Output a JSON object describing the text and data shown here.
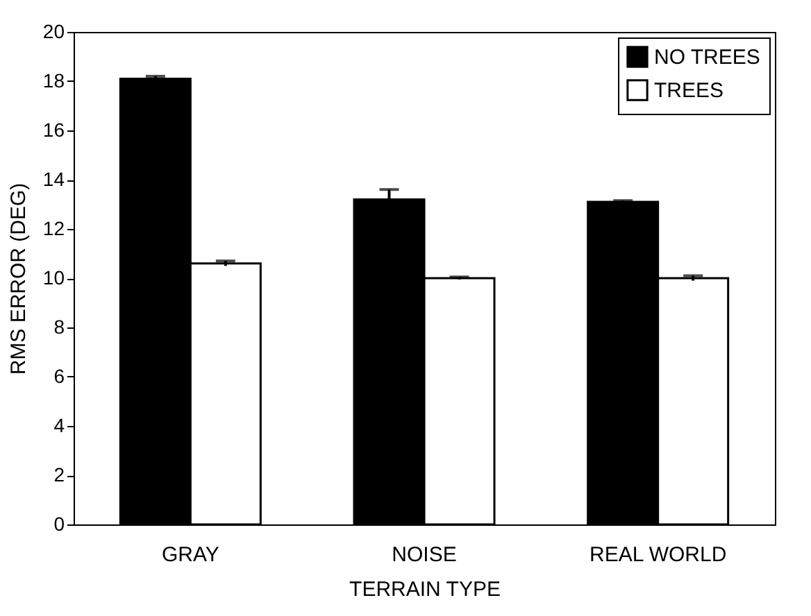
{
  "chart_data": {
    "type": "bar",
    "xlabel": "TERRAIN TYPE",
    "ylabel": "RMS ERROR (DEG)",
    "categories": [
      "GRAY",
      "NOISE",
      "REAL WORLD"
    ],
    "series": [
      {
        "name": "NO TREES",
        "color": "#000000",
        "values": [
          18.1,
          13.2,
          13.1
        ],
        "errors": [
          0.1,
          0.4,
          0.05
        ]
      },
      {
        "name": "TREES",
        "color": "#ffffff",
        "values": [
          10.6,
          10.0,
          10.0
        ],
        "errors": [
          0.1,
          0.05,
          0.1
        ]
      }
    ],
    "ylim": [
      0,
      20
    ],
    "yticks": [
      0,
      2,
      4,
      6,
      8,
      10,
      12,
      14,
      16,
      18,
      20
    ],
    "grid": false,
    "legend": "top right"
  }
}
